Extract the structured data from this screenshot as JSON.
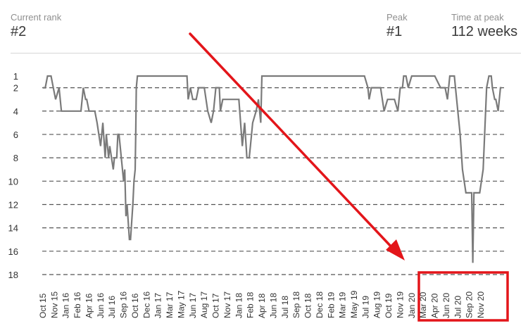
{
  "stats": {
    "current_rank_label": "Current rank",
    "current_rank_value": "#2",
    "peak_label": "Peak",
    "peak_value": "#1",
    "time_at_peak_label": "Time at peak",
    "time_at_peak_value": "112 weeks"
  },
  "colors": {
    "line": "#7a7a7a",
    "grid": "#555555",
    "annotation": "#e3151a",
    "text": "#333333"
  },
  "chart_data": {
    "type": "line",
    "title": "",
    "xlabel": "",
    "ylabel": "",
    "y_axis_inverted": true,
    "ylim": [
      1,
      18
    ],
    "y_ticks": [
      1,
      2,
      4,
      6,
      8,
      10,
      12,
      14,
      16,
      18
    ],
    "grid_lines_at": [
      2,
      4,
      6,
      8,
      10,
      12,
      14,
      16,
      18
    ],
    "grid": "dashed horizontal",
    "x_ticks": [
      "Oct 15",
      "Nov 15",
      "Jan 16",
      "Feb 16",
      "Apr 16",
      "Jun 16",
      "Jul 16",
      "Sep 16",
      "Oct 16",
      "Dec 16",
      "Jan 17",
      "Mar 17",
      "May 17",
      "Jun 17",
      "Aug 17",
      "Oct 17",
      "Nov 17",
      "Jan 18",
      "Feb 18",
      "Apr 18",
      "Jun 18",
      "Jul 18",
      "Sep 18",
      "Oct 18",
      "Dec 18",
      "Feb 19",
      "Mar 19",
      "May 19",
      "Jul 19",
      "Aug 19",
      "Oct 19",
      "Nov 19",
      "Jan 20",
      "Mar 20",
      "Apr 20",
      "Jun 20",
      "Jul 20",
      "Sep 20",
      "Nov 20"
    ],
    "series": [
      {
        "x": [
          0,
          0.2,
          0.4,
          0.7,
          0.9,
          1.1,
          1.4,
          1.6,
          2.0,
          2.7,
          3.3,
          3.5,
          3.7,
          3.8,
          4.0,
          4.2,
          4.5,
          4.7,
          5.0,
          5.2,
          5.4,
          5.5,
          5.7,
          5.8,
          6.1,
          6.2,
          6.4,
          6.5,
          6.6,
          6.7,
          6.8,
          7.0,
          7.1,
          7.2,
          7.3,
          7.5,
          7.6,
          7.8,
          7.85,
          7.9,
          8.0,
          8.05,
          8.1,
          8.2,
          8.25,
          8.4,
          8.6,
          8.8,
          9.0,
          9.3,
          9.6,
          10.0,
          12.5,
          12.6,
          12.8,
          13.0,
          13.3,
          13.5,
          13.7,
          14.0,
          14.3,
          14.6,
          14.8,
          15.0,
          15.3,
          15.4,
          15.6,
          15.8,
          16.0,
          16.3,
          16.6,
          17.0,
          17.3,
          17.5,
          17.7,
          17.9,
          18.0,
          18.2,
          18.5,
          18.7,
          18.9,
          19.0,
          19.1,
          19.2,
          19.4,
          22.0,
          25.0,
          27.9,
          28.2,
          28.3,
          28.5,
          28.9,
          29.2,
          29.3,
          29.6,
          29.9,
          30.2,
          30.5,
          30.8,
          31.0,
          31.2,
          31.3,
          31.5,
          31.7,
          32.0,
          32.5,
          34.0,
          34.5,
          34.8,
          34.9,
          35.1,
          35.3,
          35.6,
          35.7,
          35.8,
          36.0,
          36.2,
          36.4,
          36.7,
          37.0,
          37.2,
          37.3,
          37.4,
          37.6,
          37.9,
          38.2,
          38.5,
          38.7,
          38.9,
          39.0,
          39.2,
          39.3,
          39.5,
          39.7,
          39.8
        ],
        "y": [
          2,
          2,
          1,
          1,
          2,
          3,
          2,
          4,
          4,
          4,
          4,
          2,
          3,
          3,
          4,
          4,
          4,
          5,
          7,
          5,
          8,
          6,
          8,
          7,
          9,
          8,
          8,
          6,
          6,
          7,
          8,
          10,
          9,
          13,
          12,
          15,
          15,
          12,
          11,
          10,
          9,
          6,
          2,
          1,
          1,
          1,
          1,
          1,
          1,
          1,
          1,
          1,
          1,
          3,
          2,
          3,
          3,
          2,
          2,
          2,
          4,
          5,
          4,
          2,
          2,
          4,
          3,
          3,
          3,
          3,
          3,
          3,
          7,
          5,
          8,
          8,
          7,
          5,
          4,
          3,
          5,
          1,
          1,
          1,
          1,
          1,
          1,
          1,
          2,
          3,
          2,
          2,
          2,
          2,
          4,
          3,
          3,
          3,
          4,
          2,
          2,
          1,
          1,
          2,
          1,
          1,
          1,
          2,
          2,
          2,
          3,
          1,
          1,
          1,
          2,
          4,
          6,
          9,
          11,
          11,
          11,
          17,
          11,
          11,
          11,
          9,
          2,
          1,
          1,
          2,
          3,
          3,
          4,
          2,
          2
        ]
      }
    ]
  }
}
